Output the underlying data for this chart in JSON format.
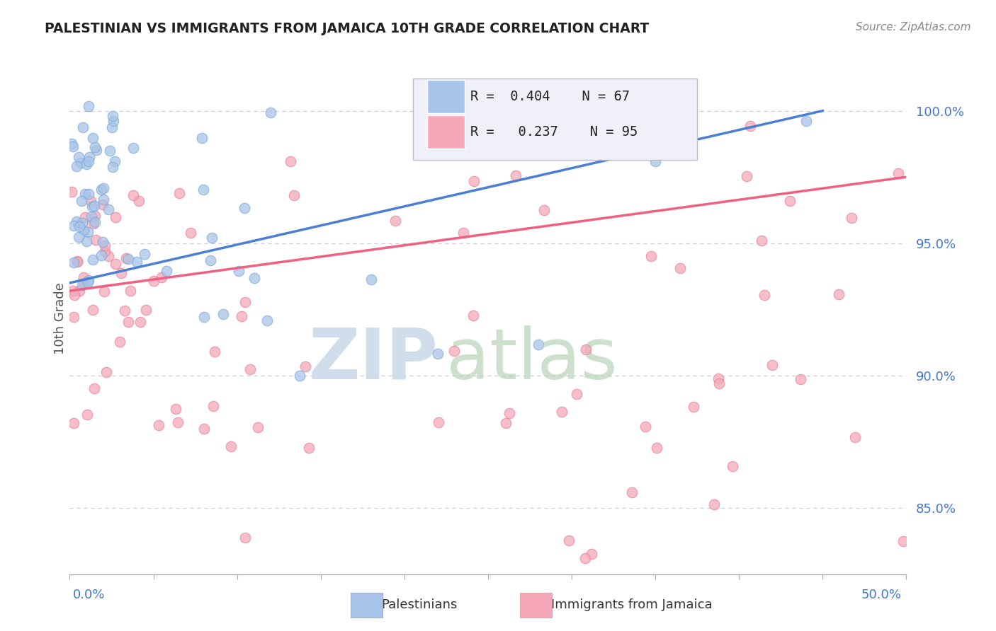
{
  "title": "PALESTINIAN VS IMMIGRANTS FROM JAMAICA 10TH GRADE CORRELATION CHART",
  "source_text": "Source: ZipAtlas.com",
  "ylabel": "10th Grade",
  "xlim": [
    0.0,
    50.0
  ],
  "ylim": [
    82.5,
    101.8
  ],
  "blue_R": 0.404,
  "blue_N": 67,
  "pink_R": 0.237,
  "pink_N": 95,
  "blue_color": "#a8c4e8",
  "pink_color": "#f4a8b8",
  "blue_line_color": "#4a7fd4",
  "pink_line_color": "#f06080",
  "blue_edge_color": "#7aaad8",
  "pink_edge_color": "#e88098",
  "legend_label_blue": "Palestinians",
  "legend_label_pink": "Immigrants from Jamaica",
  "watermark_zip_color": "#c8d8e8",
  "watermark_atlas_color": "#b8d4b8",
  "grid_color": "#c8ccd8",
  "title_color": "#222222",
  "ytick_color": "#4477cc",
  "y_ticks": [
    85.0,
    90.0,
    95.0,
    100.0
  ],
  "blue_line_x0": 0.0,
  "blue_line_x1": 45.0,
  "blue_line_y0": 93.5,
  "blue_line_y1": 100.0,
  "pink_line_x0": 0.0,
  "pink_line_x1": 50.0,
  "pink_line_y0": 93.2,
  "pink_line_y1": 97.5
}
